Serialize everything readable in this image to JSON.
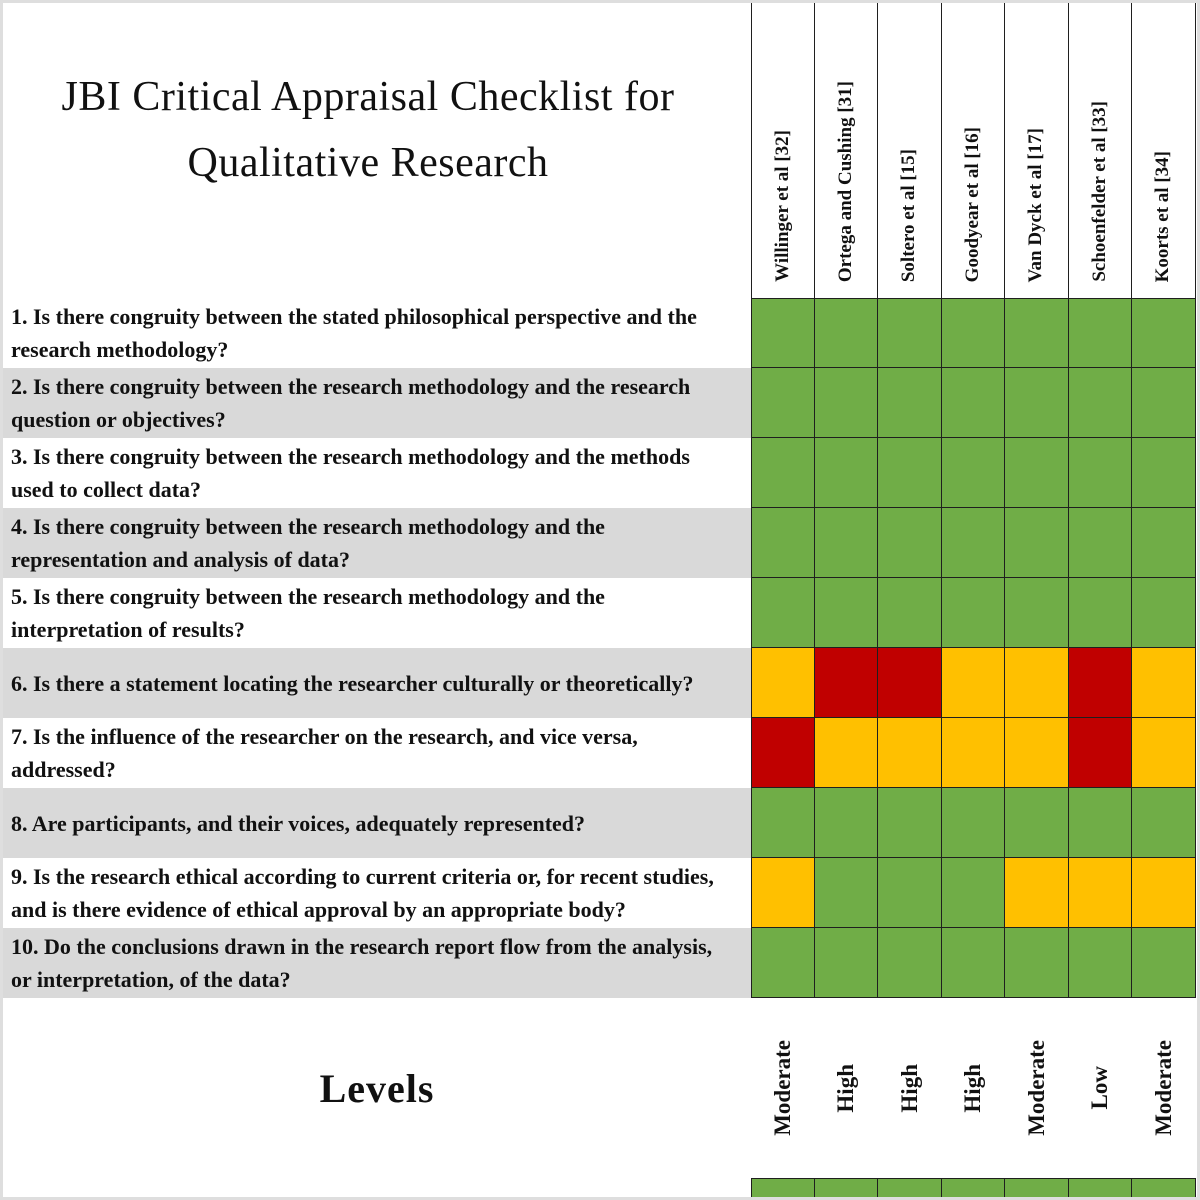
{
  "title_lines": [
    "JBI Critical Appraisal Checklist for",
    "Qualitative Research"
  ],
  "colors": {
    "green": "#70ad47",
    "yellow": "#ffc000",
    "red": "#c00000",
    "row_alt": "#d9d9d9",
    "grid_line": "#1f1f1f"
  },
  "chart_data": {
    "type": "heatmap",
    "title": "JBI Critical Appraisal Checklist for Qualitative Research",
    "footer_label": "Levels",
    "columns": [
      "Willinger et al [32]",
      "Ortega and Cushing [31]",
      "Soltero et al [15]",
      "Goodyear et al [16]",
      "Van Dyck et al [17]",
      "Schoenfelder et al [33]",
      "Koorts et al [34]"
    ],
    "rows": [
      "1. Is there congruity between the stated philosophical perspective and the research methodology?",
      "2. Is there congruity between the research methodology and the research question or objectives?",
      "3. Is there congruity between the research methodology and the methods used to collect data?",
      "4. Is there congruity between the research methodology and the representation and analysis of data?",
      "5. Is there congruity between the research methodology and the interpretation of results?",
      "6. Is there a statement locating the researcher culturally or theoretically?",
      "7. Is the influence of the researcher on the research, and vice versa, addressed?",
      "8. Are participants, and their voices, adequately represented?",
      "9. Is the research ethical according to current criteria or, for recent studies, and is there evidence of ethical approval by an appropriate body?",
      "10. Do the conclusions drawn in the research report flow from the analysis, or interpretation, of the data?"
    ],
    "cells": [
      [
        "green",
        "green",
        "green",
        "green",
        "green",
        "green",
        "green"
      ],
      [
        "green",
        "green",
        "green",
        "green",
        "green",
        "green",
        "green"
      ],
      [
        "green",
        "green",
        "green",
        "green",
        "green",
        "green",
        "green"
      ],
      [
        "green",
        "green",
        "green",
        "green",
        "green",
        "green",
        "green"
      ],
      [
        "green",
        "green",
        "green",
        "green",
        "green",
        "green",
        "green"
      ],
      [
        "yellow",
        "red",
        "red",
        "yellow",
        "yellow",
        "red",
        "yellow"
      ],
      [
        "red",
        "yellow",
        "yellow",
        "yellow",
        "yellow",
        "red",
        "yellow"
      ],
      [
        "green",
        "green",
        "green",
        "green",
        "green",
        "green",
        "green"
      ],
      [
        "yellow",
        "green",
        "green",
        "green",
        "yellow",
        "yellow",
        "yellow"
      ],
      [
        "green",
        "green",
        "green",
        "green",
        "green",
        "green",
        "green"
      ]
    ],
    "column_levels": [
      "Moderate",
      "High",
      "High",
      "High",
      "Moderate",
      "Low",
      "Moderate"
    ],
    "color_key": {
      "green": "#70ad47",
      "yellow": "#ffc000",
      "red": "#c00000"
    }
  }
}
